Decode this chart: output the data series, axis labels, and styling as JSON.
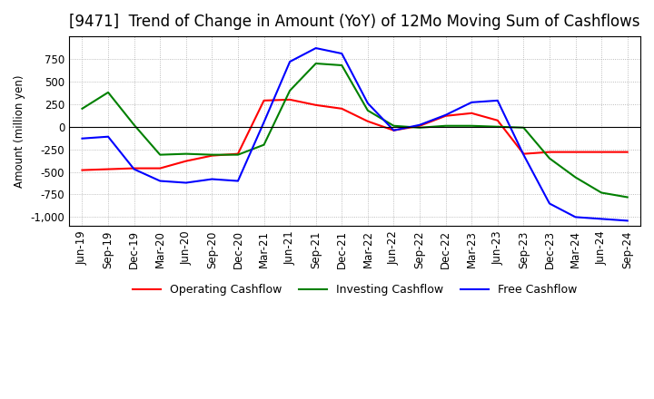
{
  "title": "[9471]  Trend of Change in Amount (YoY) of 12Mo Moving Sum of Cashflows",
  "ylabel": "Amount (million yen)",
  "ylim": [
    -1100,
    1000
  ],
  "yticks": [
    -1000,
    -750,
    -500,
    -250,
    0,
    250,
    500,
    750
  ],
  "x_labels": [
    "Jun-19",
    "Sep-19",
    "Dec-19",
    "Mar-20",
    "Jun-20",
    "Sep-20",
    "Dec-20",
    "Mar-21",
    "Jun-21",
    "Sep-21",
    "Dec-21",
    "Mar-22",
    "Jun-22",
    "Sep-22",
    "Dec-22",
    "Mar-23",
    "Jun-23",
    "Sep-23",
    "Dec-23",
    "Mar-24",
    "Jun-24",
    "Sep-24"
  ],
  "operating": [
    -480,
    -470,
    -460,
    -460,
    -380,
    -320,
    -300,
    290,
    300,
    240,
    200,
    60,
    -40,
    10,
    120,
    150,
    70,
    -300,
    -280,
    -280,
    -280,
    -280
  ],
  "investing": [
    200,
    380,
    20,
    -310,
    -300,
    -310,
    -310,
    -200,
    400,
    700,
    680,
    180,
    10,
    -10,
    10,
    10,
    0,
    -10,
    -350,
    -560,
    -730,
    -780
  ],
  "free": [
    -130,
    -110,
    -470,
    -600,
    -620,
    -580,
    -600,
    50,
    720,
    870,
    810,
    260,
    -40,
    20,
    130,
    270,
    290,
    -310,
    -850,
    -1000,
    -1020,
    -1040
  ],
  "operating_color": "#ff0000",
  "investing_color": "#008000",
  "free_color": "#0000ff",
  "background_color": "#ffffff",
  "grid_color": "#aaaaaa",
  "title_fontsize": 12,
  "legend_fontsize": 9,
  "axis_fontsize": 8.5
}
